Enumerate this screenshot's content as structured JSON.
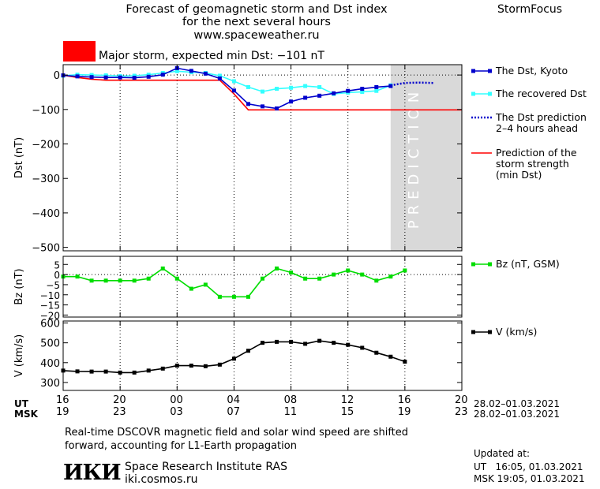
{
  "header": {
    "title_line1": "Forecast of geomagnetic storm and Dst index",
    "title_line2": "for the next several hours",
    "title_line3": "www.spaceweather.ru",
    "brand": "StormFocus"
  },
  "storm_banner": {
    "color": "#ff0000",
    "text": "Major storm, expected min Dst: −101 nT"
  },
  "prediction_label": "PREDICTION",
  "x_axis": {
    "ut_label": "UT",
    "msk_label": "MSK",
    "ut_ticks": [
      "16",
      "20",
      "00",
      "04",
      "08",
      "12",
      "16",
      "20"
    ],
    "msk_ticks": [
      "19",
      "23",
      "03",
      "07",
      "11",
      "15",
      "19",
      "23"
    ],
    "date_range_ut": "28.02–01.03.2021",
    "date_range_msk": "28.02–01.03.2021"
  },
  "footer": {
    "note_line1": "Real-time DSCOVR magnetic field and solar wind speed are shifted",
    "note_line2": "forward, accounting for L1-Earth propagation",
    "logo_text": "ИКИ",
    "institute": "Space Research Institute RAS",
    "website": "iki.cosmos.ru",
    "updated_label": "Updated at:",
    "updated_ut": "UT   16:05, 01.03.2021",
    "updated_msk": "MSK 19:05, 01.03.2021"
  },
  "colors": {
    "dst_kyoto": "#0000cc",
    "dst_recovered": "#33ffff",
    "dst_prediction": "#0000cc",
    "storm_strength": "#ff0000",
    "bz": "#00dd00",
    "v": "#000000",
    "prediction_band": "#d9d9d9"
  },
  "chart_data": [
    {
      "type": "line",
      "ylabel": "Dst (nT)",
      "ylim": [
        -510,
        30
      ],
      "yticks": [
        0,
        -100,
        -200,
        -300,
        -400,
        -500
      ],
      "xlim": [
        16,
        44
      ],
      "prediction_start": 39,
      "series": [
        {
          "name": "The Dst, Kyoto",
          "marker": "square",
          "style": "solid",
          "x": [
            16,
            17,
            18,
            19,
            20,
            21,
            22,
            23,
            24,
            25,
            26,
            27,
            28,
            29,
            30,
            31,
            32,
            33,
            34,
            35,
            36,
            37,
            38,
            39
          ],
          "y": [
            -1,
            -4,
            -6,
            -7,
            -7,
            -8,
            -5,
            1,
            20,
            12,
            4,
            -10,
            -45,
            -84,
            -91,
            -97,
            -77,
            -66,
            -60,
            -53,
            -46,
            -40,
            -35,
            -32
          ]
        },
        {
          "name": "The recovered Dst",
          "marker": "square",
          "style": "solid",
          "x": [
            16,
            17,
            18,
            19,
            20,
            21,
            22,
            23,
            24,
            25,
            26,
            27,
            28,
            29,
            30,
            31,
            32,
            33,
            34,
            35,
            36,
            37,
            38,
            39
          ],
          "y": [
            -2,
            1,
            0,
            -1,
            -3,
            -2,
            1,
            6,
            11,
            8,
            6,
            -2,
            -18,
            -35,
            -48,
            -40,
            -37,
            -32,
            -35,
            -55,
            -51,
            -49,
            -46,
            -30
          ]
        },
        {
          "name": "The Dst prediction 2–4 hours ahead",
          "marker": "none",
          "style": "dotted",
          "x": [
            39,
            40,
            41,
            42
          ],
          "y": [
            -30,
            -23,
            -22,
            -23
          ]
        },
        {
          "name": "Prediction of the storm strength (min Dst)",
          "marker": "none",
          "style": "solid",
          "x": [
            16,
            17,
            18,
            19,
            20,
            21,
            22,
            23,
            24,
            25,
            26,
            27,
            28,
            29,
            30,
            31,
            32,
            33,
            34,
            35,
            36,
            37,
            38,
            39,
            40,
            41,
            42,
            43,
            44
          ],
          "y": [
            -1,
            -7,
            -12,
            -15,
            -15,
            -15,
            -15,
            -15,
            -15,
            -15,
            -15,
            -15,
            -55,
            -101,
            -101,
            -101,
            -101,
            -101,
            -101,
            -101,
            -101,
            -101,
            -101,
            -101,
            -101,
            -101,
            -101,
            -101,
            -101
          ]
        }
      ]
    },
    {
      "type": "line",
      "ylabel": "Bz (nT)",
      "ylim": [
        -21,
        9
      ],
      "yticks": [
        5,
        0,
        -5,
        -10,
        -15,
        -20
      ],
      "xlim": [
        16,
        44
      ],
      "series": [
        {
          "name": "Bz (nT, GSM)",
          "marker": "square",
          "style": "solid",
          "x": [
            16,
            17,
            18,
            19,
            20,
            21,
            22,
            23,
            24,
            25,
            26,
            27,
            28,
            29,
            30,
            31,
            32,
            33,
            34,
            35,
            36,
            37,
            38,
            39,
            40
          ],
          "y": [
            -1,
            -1,
            -3,
            -3,
            -3,
            -3,
            -2,
            3,
            -2,
            -7,
            -5,
            -11,
            -11,
            -11,
            -2,
            3,
            1,
            -2,
            -2,
            0,
            2,
            0,
            -3,
            -1,
            2
          ]
        }
      ]
    },
    {
      "type": "line",
      "ylabel": "V (km/s)",
      "ylim": [
        260,
        610
      ],
      "yticks": [
        600,
        500,
        400,
        300
      ],
      "xlim": [
        16,
        44
      ],
      "series": [
        {
          "name": "V (km/s)",
          "marker": "square",
          "style": "solid",
          "x": [
            16,
            17,
            18,
            19,
            20,
            21,
            22,
            23,
            24,
            25,
            26,
            27,
            28,
            29,
            30,
            31,
            32,
            33,
            34,
            35,
            36,
            37,
            38,
            39,
            40
          ],
          "y": [
            360,
            356,
            355,
            355,
            350,
            350,
            360,
            370,
            385,
            385,
            382,
            390,
            420,
            460,
            500,
            505,
            505,
            495,
            510,
            500,
            490,
            475,
            450,
            430,
            405
          ]
        }
      ]
    }
  ]
}
